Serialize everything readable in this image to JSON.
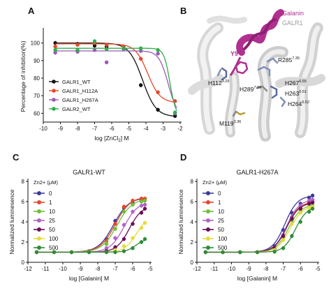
{
  "panels": {
    "A": {
      "letter": "A"
    },
    "B": {
      "letter": "B",
      "labels": {
        "galanin": "Galanin",
        "galr1": "GALR1",
        "y9": "Y9",
        "r285": "R285",
        "r285_sup": "7.35",
        "h112": "H112",
        "h112_sup": "3.29",
        "h289": "H289",
        "h289_sup": "7.39",
        "h267": "H267",
        "h267_sup": "6.55",
        "h263": "H263",
        "h263_sup": "6.51",
        "h264": "H264",
        "h264_sup": "6.52",
        "m119": "M119",
        "m119_sup": "3.36"
      }
    },
    "C": {
      "letter": "C"
    },
    "D": {
      "letter": "D"
    }
  },
  "colors": {
    "c0": "#3b3b9a",
    "c1": "#e8472b",
    "c10": "#6fbf3a",
    "c25": "#b163c6",
    "c50": "#6a0f57",
    "c100": "#e6dc3c",
    "c500": "#2e8b3a",
    "galanin": "#b0308f",
    "galr1": "#bdbdbd",
    "wt": "#111111",
    "h112a": "#e8472b",
    "h267a": "#9b59b6",
    "galr2": "#2fae4a"
  },
  "chart_data": [
    {
      "id": "A",
      "type": "line",
      "xlabel": "log [ZnCl2] M",
      "ylabel": "Percentage of inhibition(%)",
      "xlim": [
        -10,
        -2
      ],
      "ylim": [
        55,
        107
      ],
      "xticks": [
        -10,
        -9,
        -8,
        -7,
        -6,
        -5,
        -4,
        -3,
        -2
      ],
      "yticks": [
        60,
        70,
        80,
        90,
        100
      ],
      "legend_position": "bottom-left",
      "series": [
        {
          "name": "GALR1_WT",
          "color": "#111111",
          "marker": "circle",
          "top": 100,
          "bottom": 58,
          "logIC50": -4.2,
          "hill": 1.1,
          "x": [
            -9.3,
            -8,
            -7,
            -6.3,
            -5.3,
            -4.3,
            -3.3,
            -2.3
          ],
          "y": [
            100,
            99.5,
            98.5,
            98,
            96.5,
            76,
            62,
            58.5
          ]
        },
        {
          "name": "GALR1_H112A",
          "color": "#e8472b",
          "marker": "circle",
          "top": 99.5,
          "bottom": 66,
          "logIC50": -3.9,
          "hill": 1.2,
          "x": [
            -9.3,
            -8,
            -7,
            -6.3,
            -5.3,
            -4.3,
            -3.3,
            -2.3
          ],
          "y": [
            98,
            99,
            100,
            99,
            98,
            91,
            72,
            67
          ]
        },
        {
          "name": "GALR1_H267A",
          "color": "#9b59b6",
          "marker": "circle",
          "top": 95.5,
          "bottom": 58,
          "logIC50": -2.7,
          "hill": 1.6,
          "x": [
            -9.3,
            -8,
            -7,
            -6.3,
            -5.3,
            -4.3,
            -3.3,
            -2.3
          ],
          "y": [
            94.5,
            95,
            96,
            89,
            96.5,
            95.5,
            94,
            60
          ]
        },
        {
          "name": "GALR2_WT",
          "color": "#2fae4a",
          "marker": "circle",
          "top": 97,
          "bottom": 58,
          "logIC50": -2.6,
          "hill": 2.5,
          "x": [
            -9.3,
            -8,
            -7,
            -6.3,
            -5.3,
            -4.3,
            -3.3,
            -2.3
          ],
          "y": [
            96,
            96,
            101,
            96.5,
            97,
            97,
            96,
            60.5
          ]
        }
      ]
    },
    {
      "id": "C",
      "type": "line",
      "title": "GALR1-WT",
      "xlabel": "log [Galanin] M",
      "ylabel": "Normalized luminesence",
      "xlim": [
        -12,
        -5
      ],
      "ylim": [
        0,
        8
      ],
      "xticks": [
        -12,
        -11,
        -10,
        -9,
        -8,
        -7,
        -6,
        -5
      ],
      "yticks": [
        0,
        2,
        4,
        6,
        8
      ],
      "legend_title": "Zn2+ (μM)",
      "series": [
        {
          "name": "0",
          "color": "#3b3b9a",
          "bottom": 1,
          "top": 6.4,
          "logEC50": -7.1,
          "hill": 1,
          "x": [
            -11.5,
            -10.5,
            -9.5,
            -8.5,
            -7.5,
            -7,
            -6.5,
            -6,
            -5.5,
            -5.3
          ],
          "y": [
            1,
            1,
            1,
            1.1,
            2.3,
            4.1,
            5.4,
            5.9,
            6.1,
            6.2
          ]
        },
        {
          "name": "1",
          "color": "#e8472b",
          "bottom": 1,
          "top": 6.5,
          "logEC50": -7.0,
          "hill": 1,
          "x": [
            -11.5,
            -10.5,
            -9.5,
            -8.5,
            -7.5,
            -7,
            -6.5,
            -6,
            -5.5,
            -5.3
          ],
          "y": [
            1,
            1,
            1,
            1.1,
            2.1,
            3.8,
            5.5,
            6.1,
            6.3,
            6.3
          ]
        },
        {
          "name": "10",
          "color": "#6fbf3a",
          "bottom": 1,
          "top": 6.3,
          "logEC50": -6.9,
          "hill": 1,
          "x": [
            -11.5,
            -10.5,
            -9.5,
            -8.5,
            -7.5,
            -7,
            -6.5,
            -6,
            -5.5,
            -5.3
          ],
          "y": [
            1,
            1,
            1,
            1.05,
            1.8,
            3.3,
            5.0,
            5.7,
            6.0,
            6.1
          ]
        },
        {
          "name": "25",
          "color": "#b163c6",
          "bottom": 1,
          "top": 6.0,
          "logEC50": -6.5,
          "hill": 1.1,
          "x": [
            -11.5,
            -10.5,
            -9.5,
            -8.5,
            -7.5,
            -7,
            -6.5,
            -6,
            -5.5,
            -5.3
          ],
          "y": [
            1,
            1,
            1,
            1,
            1.4,
            2.4,
            3.7,
            5.0,
            5.6,
            5.7
          ]
        },
        {
          "name": "50",
          "color": "#6a0f57",
          "bottom": 1,
          "top": 5.6,
          "logEC50": -6.2,
          "hill": 1.2,
          "x": [
            -11.5,
            -10.5,
            -9.5,
            -8.5,
            -7.5,
            -7,
            -6.5,
            -6,
            -5.5,
            -5.3
          ],
          "y": [
            1,
            1,
            1,
            1,
            1.1,
            1.5,
            2.3,
            3.8,
            4.9,
            5.3
          ]
        },
        {
          "name": "100",
          "color": "#e6dc3c",
          "bottom": 1,
          "top": 4.6,
          "logEC50": -5.8,
          "hill": 1.3,
          "x": [
            -11.5,
            -10.5,
            -9.5,
            -8.5,
            -7.5,
            -7,
            -6.5,
            -6,
            -5.5,
            -5.3
          ],
          "y": [
            1,
            1,
            1,
            1,
            1,
            1.2,
            1.6,
            2.4,
            3.4,
            3.9
          ]
        },
        {
          "name": "500",
          "color": "#2e8b3a",
          "bottom": 1,
          "top": 2.4,
          "logEC50": -5.8,
          "hill": 1.5,
          "x": [
            -11.5,
            -10.5,
            -9.5,
            -8.5,
            -7.5,
            -7,
            -6.5,
            -6,
            -5.5,
            -5.3
          ],
          "y": [
            1,
            1,
            1,
            1,
            1,
            1,
            1.1,
            1.4,
            2.0,
            2.3
          ]
        }
      ]
    },
    {
      "id": "D",
      "type": "line",
      "title": "GALR1-H267A",
      "xlabel": "log [Galanin] M",
      "ylabel": "Normalized luminesence",
      "xlim": [
        -12,
        -5
      ],
      "ylim": [
        0,
        8
      ],
      "xticks": [
        -12,
        -11,
        -10,
        -9,
        -8,
        -7,
        -6,
        -5
      ],
      "yticks": [
        0,
        2,
        4,
        6,
        8
      ],
      "legend_title": "Zn2+ (μM)",
      "series": [
        {
          "name": "0",
          "color": "#3b3b9a",
          "bottom": 1,
          "top": 6.6,
          "logEC50": -6.9,
          "hill": 1.2,
          "x": [
            -11.5,
            -10.5,
            -9.5,
            -8.5,
            -7.5,
            -7,
            -6.5,
            -6,
            -5.5,
            -5.3
          ],
          "y": [
            1,
            1,
            1,
            1,
            1.6,
            3.2,
            4.9,
            5.8,
            6.4,
            6.6
          ]
        },
        {
          "name": "1",
          "color": "#e8472b",
          "bottom": 1,
          "top": 6.0,
          "logEC50": -6.8,
          "hill": 1.2,
          "x": [
            -11.5,
            -10.5,
            -9.5,
            -8.5,
            -7.5,
            -7,
            -6.5,
            -6,
            -5.5,
            -5.3
          ],
          "y": [
            1,
            1,
            1,
            1,
            1.4,
            2.7,
            4.4,
            5.4,
            5.9,
            6.0
          ]
        },
        {
          "name": "10",
          "color": "#6fbf3a",
          "bottom": 1,
          "top": 5.7,
          "logEC50": -6.7,
          "hill": 1.2,
          "x": [
            -11.5,
            -10.5,
            -9.5,
            -8.5,
            -7.5,
            -7,
            -6.5,
            -6,
            -5.5,
            -5.3
          ],
          "y": [
            1,
            1,
            1,
            1,
            1.3,
            2.4,
            4.1,
            5.1,
            5.5,
            5.6
          ]
        },
        {
          "name": "25",
          "color": "#b163c6",
          "bottom": 1,
          "top": 6.2,
          "logEC50": -6.8,
          "hill": 1.2,
          "x": [
            -11.5,
            -10.5,
            -9.5,
            -8.5,
            -7.5,
            -7,
            -6.5,
            -6,
            -5.5,
            -5.3
          ],
          "y": [
            1,
            1,
            1,
            1,
            1.4,
            2.7,
            4.5,
            5.6,
            6.1,
            6.2
          ]
        },
        {
          "name": "50",
          "color": "#6a0f57",
          "bottom": 1,
          "top": 5.9,
          "logEC50": -6.8,
          "hill": 1.2,
          "x": [
            -11.5,
            -10.5,
            -9.5,
            -8.5,
            -7.5,
            -7,
            -6.5,
            -6,
            -5.5,
            -5.3
          ],
          "y": [
            1,
            1,
            1,
            1,
            1.4,
            2.6,
            4.3,
            5.3,
            5.8,
            5.9
          ]
        },
        {
          "name": "100",
          "color": "#e6dc3c",
          "bottom": 1,
          "top": 5.6,
          "logEC50": -6.6,
          "hill": 1.2,
          "x": [
            -11.5,
            -10.5,
            -9.5,
            -8.5,
            -7.5,
            -7,
            -6.5,
            -6,
            -5.5,
            -5.3
          ],
          "y": [
            1,
            1,
            1,
            1,
            1.2,
            2.2,
            3.8,
            4.9,
            5.4,
            5.5
          ]
        },
        {
          "name": "500",
          "color": "#2e8b3a",
          "bottom": 1,
          "top": 5.5,
          "logEC50": -6.3,
          "hill": 1.3,
          "x": [
            -11.5,
            -10.5,
            -9.5,
            -8.5,
            -7.5,
            -7,
            -6.5,
            -6,
            -5.5,
            -5.3
          ],
          "y": [
            1,
            1,
            1,
            1,
            1.05,
            1.4,
            2.6,
            4.0,
            5.0,
            5.3
          ]
        }
      ]
    }
  ]
}
